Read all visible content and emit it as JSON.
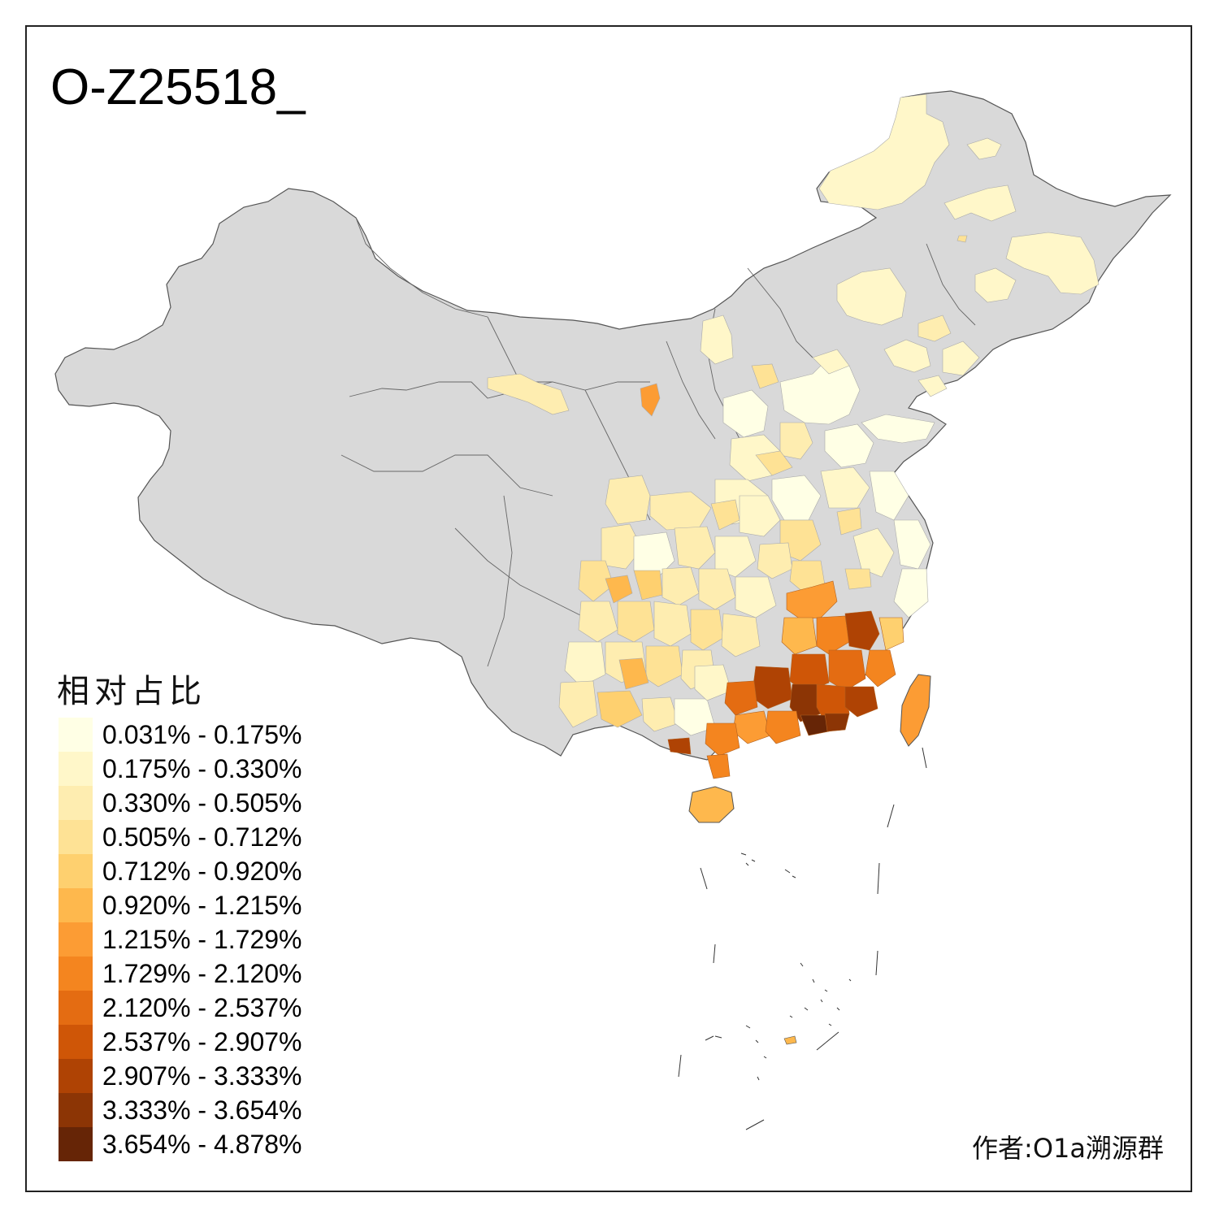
{
  "title": "O-Z25518_",
  "legend": {
    "title": "相对占比",
    "items": [
      {
        "label": "0.031% - 0.175%",
        "color": "#FFFFE5"
      },
      {
        "label": "0.175% - 0.330%",
        "color": "#FFF7C9"
      },
      {
        "label": "0.330% - 0.505%",
        "color": "#FEEDB0"
      },
      {
        "label": "0.505% - 0.712%",
        "color": "#FEE295"
      },
      {
        "label": "0.712% - 0.920%",
        "color": "#FED06F"
      },
      {
        "label": "0.920% - 1.215%",
        "color": "#FEB84D"
      },
      {
        "label": "1.215% - 1.729%",
        "color": "#FC9C34"
      },
      {
        "label": "1.729% - 2.120%",
        "color": "#F4851F"
      },
      {
        "label": "2.120% - 2.537%",
        "color": "#E46C12"
      },
      {
        "label": "2.537% - 2.907%",
        "color": "#CF5607"
      },
      {
        "label": "2.907% - 3.333%",
        "color": "#AF4304"
      },
      {
        "label": "3.333% - 3.654%",
        "color": "#8C3505"
      },
      {
        "label": "3.654% - 4.878%",
        "color": "#662506"
      }
    ]
  },
  "author": "作者:O1a溯源群",
  "colors": {
    "no_data": "#D9D9D9",
    "border": "#555555"
  }
}
